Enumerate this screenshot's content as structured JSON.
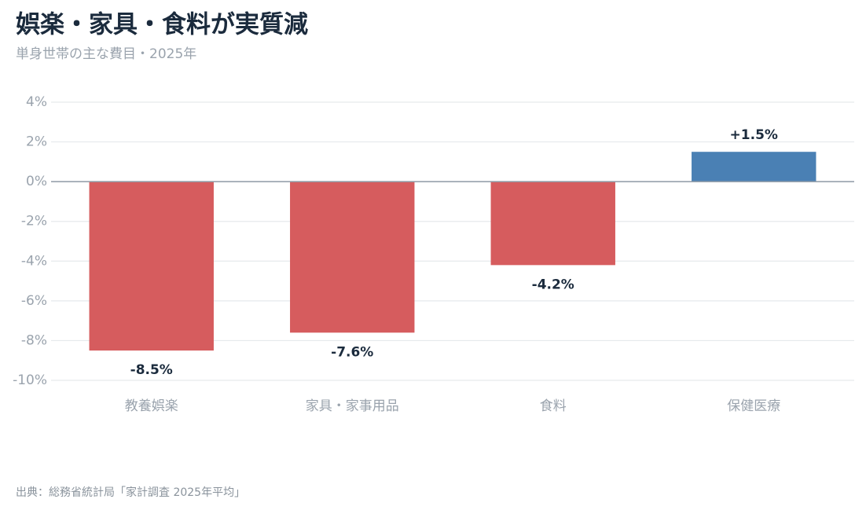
{
  "chart_data": {
    "type": "bar",
    "title": "娯楽・家具・食料が実質減",
    "subtitle": "単身世帯の主な費目・2025年",
    "categories": [
      "教養娯楽",
      "家具・家事用品",
      "食料",
      "保健医療"
    ],
    "values": [
      -8.5,
      -7.6,
      -4.2,
      1.5
    ],
    "value_labels": [
      "-8.5%",
      "-7.6%",
      "-4.2%",
      "+1.5%"
    ],
    "colors": [
      "#d65c5e",
      "#d65c5e",
      "#d65c5e",
      "#4a80b4"
    ],
    "ylim": [
      -10,
      4
    ],
    "yticks": [
      {
        "value": -10,
        "label": "-10%"
      },
      {
        "value": -8,
        "label": "-8%"
      },
      {
        "value": -6,
        "label": "-6%"
      },
      {
        "value": -4,
        "label": "-4%"
      },
      {
        "value": -2,
        "label": "-2%"
      },
      {
        "value": 0,
        "label": "0%"
      },
      {
        "value": 2,
        "label": "2%"
      },
      {
        "value": 4,
        "label": "4%"
      }
    ],
    "grid": true,
    "source": "出典：総務省統計局「家計調査 2025年平均」"
  }
}
